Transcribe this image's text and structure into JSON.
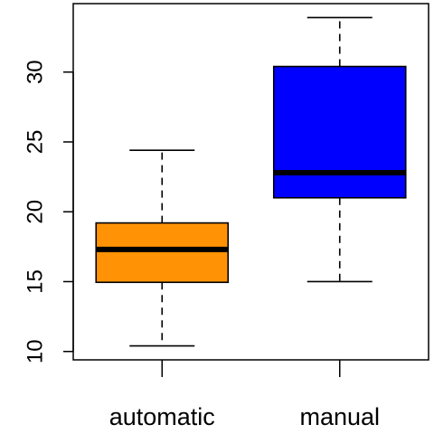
{
  "chart_data": {
    "type": "box",
    "title": "",
    "xlabel": "",
    "ylabel": "",
    "categories": [
      "automatic",
      "manual"
    ],
    "y_ticks": [
      10,
      15,
      20,
      25,
      30
    ],
    "y_tick_labels": [
      "10",
      "15",
      "20",
      "25",
      "30"
    ],
    "ylim": [
      9.4,
      34.9
    ],
    "grid": false,
    "legend": "none",
    "boxes": [
      {
        "category": "automatic",
        "whisker_low": 10.4,
        "q1": 14.95,
        "median": 17.3,
        "q3": 19.2,
        "whisker_high": 24.4,
        "color": "#ff9305"
      },
      {
        "category": "manual",
        "whisker_low": 15.0,
        "q1": 21.0,
        "median": 22.8,
        "q3": 30.4,
        "whisker_high": 33.9,
        "color": "#0000ff"
      }
    ]
  }
}
